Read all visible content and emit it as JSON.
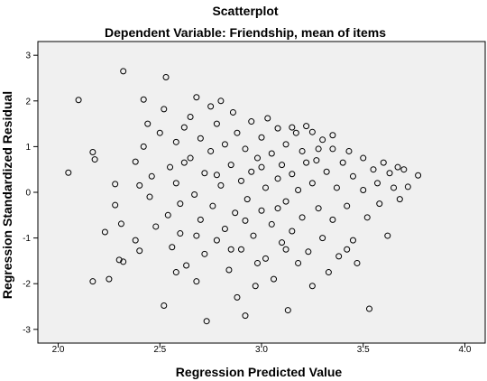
{
  "chart_data": {
    "type": "scatter",
    "title": "Scatterplot",
    "subtitle": "Dependent Variable: Friendship, mean of items",
    "xlabel": "Regression Predicted Value",
    "ylabel": "Regression Standardized Residual",
    "xlim": [
      1.9,
      4.1
    ],
    "ylim": [
      -3.3,
      3.3
    ],
    "xticks": [
      2.0,
      2.5,
      3.0,
      3.5,
      4.0
    ],
    "xtick_labels": [
      "2.0",
      "2.5",
      "3.0",
      "3.5",
      "4.0"
    ],
    "yticks": [
      -3,
      -2,
      -1,
      0,
      1,
      2,
      3
    ],
    "ytick_labels": [
      "-3",
      "-2",
      "-1",
      "0",
      "1",
      "2",
      "3"
    ],
    "grid": false,
    "plot_background": "#f0f0f0",
    "marker": "open-circle",
    "marker_color": "#000000",
    "points": [
      [
        2.05,
        0.43
      ],
      [
        2.1,
        2.02
      ],
      [
        2.17,
        0.88
      ],
      [
        2.18,
        0.72
      ],
      [
        2.17,
        -1.95
      ],
      [
        2.23,
        -0.87
      ],
      [
        2.25,
        -1.9
      ],
      [
        2.28,
        0.18
      ],
      [
        2.28,
        -0.28
      ],
      [
        2.3,
        -1.48
      ],
      [
        2.32,
        2.65
      ],
      [
        2.31,
        -0.69
      ],
      [
        2.32,
        -1.52
      ],
      [
        2.38,
        -1.05
      ],
      [
        2.4,
        -1.28
      ],
      [
        2.38,
        0.67
      ],
      [
        2.4,
        0.15
      ],
      [
        2.42,
        1.0
      ],
      [
        2.42,
        2.03
      ],
      [
        2.44,
        1.5
      ],
      [
        2.45,
        -0.1
      ],
      [
        2.46,
        0.35
      ],
      [
        2.48,
        -0.75
      ],
      [
        2.5,
        1.3
      ],
      [
        2.52,
        1.82
      ],
      [
        2.53,
        2.52
      ],
      [
        2.52,
        -2.48
      ],
      [
        2.54,
        -0.5
      ],
      [
        2.55,
        0.55
      ],
      [
        2.56,
        -1.2
      ],
      [
        2.58,
        1.1
      ],
      [
        2.58,
        0.2
      ],
      [
        2.6,
        -0.25
      ],
      [
        2.6,
        -0.9
      ],
      [
        2.62,
        1.42
      ],
      [
        2.63,
        -1.6
      ],
      [
        2.65,
        0.75
      ],
      [
        2.65,
        1.65
      ],
      [
        2.67,
        -0.05
      ],
      [
        2.68,
        2.08
      ],
      [
        2.68,
        -1.95
      ],
      [
        2.7,
        -0.6
      ],
      [
        2.7,
        1.18
      ],
      [
        2.72,
        0.42
      ],
      [
        2.72,
        -1.35
      ],
      [
        2.73,
        -2.82
      ],
      [
        2.75,
        1.88
      ],
      [
        2.75,
        0.9
      ],
      [
        2.76,
        -0.3
      ],
      [
        2.78,
        -1.05
      ],
      [
        2.78,
        1.5
      ],
      [
        2.8,
        2.0
      ],
      [
        2.8,
        0.15
      ],
      [
        2.82,
        -0.8
      ],
      [
        2.82,
        1.05
      ],
      [
        2.84,
        -1.7
      ],
      [
        2.85,
        0.6
      ],
      [
        2.86,
        1.75
      ],
      [
        2.87,
        -0.45
      ],
      [
        2.88,
        -2.3
      ],
      [
        2.88,
        1.3
      ],
      [
        2.9,
        0.25
      ],
      [
        2.9,
        -1.25
      ],
      [
        2.92,
        0.95
      ],
      [
        2.92,
        -2.7
      ],
      [
        2.93,
        -0.15
      ],
      [
        2.95,
        1.55
      ],
      [
        2.95,
        0.45
      ],
      [
        2.96,
        -0.95
      ],
      [
        2.97,
        -2.05
      ],
      [
        2.98,
        0.75
      ],
      [
        3.0,
        -0.4
      ],
      [
        3.0,
        1.2
      ],
      [
        3.02,
        -1.45
      ],
      [
        3.02,
        0.1
      ],
      [
        3.03,
        1.62
      ],
      [
        3.05,
        -0.7
      ],
      [
        3.05,
        0.85
      ],
      [
        3.06,
        -1.9
      ],
      [
        3.08,
        0.3
      ],
      [
        3.08,
        1.4
      ],
      [
        3.1,
        -1.1
      ],
      [
        3.1,
        0.6
      ],
      [
        3.12,
        -0.2
      ],
      [
        3.12,
        1.05
      ],
      [
        3.13,
        -2.58
      ],
      [
        3.15,
        0.4
      ],
      [
        3.15,
        -0.85
      ],
      [
        3.17,
        1.3
      ],
      [
        3.18,
        -1.55
      ],
      [
        3.18,
        0.05
      ],
      [
        3.2,
        0.9
      ],
      [
        3.2,
        -0.55
      ],
      [
        3.22,
        1.45
      ],
      [
        3.23,
        -1.3
      ],
      [
        3.25,
        0.2
      ],
      [
        3.25,
        -2.05
      ],
      [
        3.27,
        0.7
      ],
      [
        3.28,
        -0.35
      ],
      [
        3.3,
        1.15
      ],
      [
        3.3,
        -1.0
      ],
      [
        3.32,
        0.45
      ],
      [
        3.33,
        -1.75
      ],
      [
        3.35,
        0.95
      ],
      [
        3.35,
        -0.6
      ],
      [
        3.37,
        0.1
      ],
      [
        3.38,
        -1.4
      ],
      [
        3.4,
        0.65
      ],
      [
        3.42,
        -0.3
      ],
      [
        3.43,
        0.9
      ],
      [
        3.45,
        -1.05
      ],
      [
        3.45,
        0.35
      ],
      [
        3.47,
        -1.55
      ],
      [
        3.5,
        0.75
      ],
      [
        3.5,
        0.05
      ],
      [
        3.52,
        -0.55
      ],
      [
        3.53,
        -2.55
      ],
      [
        3.55,
        0.5
      ],
      [
        3.57,
        0.2
      ],
      [
        3.58,
        -0.25
      ],
      [
        3.6,
        0.65
      ],
      [
        3.62,
        -0.95
      ],
      [
        3.63,
        0.42
      ],
      [
        3.65,
        0.1
      ],
      [
        3.67,
        0.55
      ],
      [
        3.68,
        -0.15
      ],
      [
        3.7,
        0.5
      ],
      [
        3.72,
        0.12
      ],
      [
        3.77,
        0.37
      ],
      [
        3.42,
        -1.25
      ],
      [
        3.35,
        1.25
      ],
      [
        3.22,
        0.65
      ],
      [
        2.62,
        0.65
      ],
      [
        2.58,
        -1.75
      ],
      [
        2.68,
        -0.95
      ],
      [
        2.78,
        0.38
      ],
      [
        2.98,
        -1.55
      ],
      [
        3.08,
        -0.35
      ],
      [
        3.15,
        1.42
      ],
      [
        3.28,
        0.95
      ],
      [
        2.85,
        -1.25
      ],
      [
        3.0,
        0.55
      ],
      [
        3.12,
        -1.25
      ],
      [
        3.25,
        1.32
      ],
      [
        2.92,
        -0.62
      ]
    ]
  }
}
